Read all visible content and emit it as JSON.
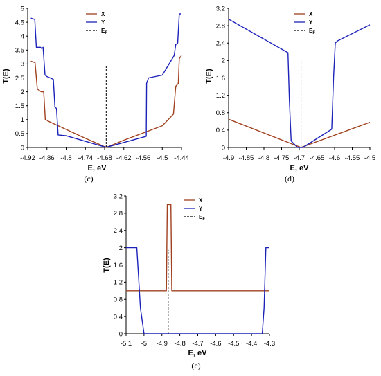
{
  "colors": {
    "X": "#a0401f",
    "Y": "#1c22b8",
    "Ef": "#000000",
    "axis": "#000000"
  },
  "chart_data": [
    {
      "panel": "(c)",
      "type": "line",
      "xlabel": "E, eV",
      "ylabel": "T(E)",
      "xlim": [
        -4.92,
        -4.44
      ],
      "ylim": [
        0,
        5
      ],
      "xticks": [
        "-4.92",
        "-4.86",
        "-4.8",
        "-4.74",
        "-4.68",
        "-4.62",
        "-4.56",
        "-4.5",
        "-4.44"
      ],
      "yticks": [
        "0",
        "0.5",
        "1",
        "1.5",
        "2",
        "2.5",
        "3",
        "3.5",
        "4",
        "4.5",
        "5"
      ],
      "legend": [
        "X",
        "Y",
        "EF"
      ],
      "series": [
        {
          "name": "X",
          "x": [
            -4.91,
            -4.897,
            -4.89,
            -4.878,
            -4.87,
            -4.865,
            -4.86,
            -4.857,
            -4.74,
            -4.7,
            -4.675,
            -4.62,
            -4.56,
            -4.5,
            -4.465,
            -4.458,
            -4.45,
            -4.447,
            -4.44
          ],
          "y": [
            3.1,
            3.05,
            2.1,
            2.0,
            2.0,
            1.0,
            0.98,
            0.95,
            0.33,
            0.13,
            0.0,
            0.26,
            0.52,
            0.78,
            1.2,
            2.2,
            2.3,
            3.2,
            3.3
          ]
        },
        {
          "name": "Y",
          "x": [
            -4.91,
            -4.898,
            -4.893,
            -4.88,
            -4.876,
            -4.872,
            -4.866,
            -4.86,
            -4.84,
            -4.835,
            -4.83,
            -4.825,
            -4.8,
            -4.68,
            -4.67,
            -4.55,
            -4.549,
            -4.543,
            -4.5,
            -4.463,
            -4.458,
            -4.452,
            -4.447,
            -4.44
          ],
          "y": [
            4.65,
            4.6,
            3.6,
            3.6,
            3.55,
            3.6,
            2.6,
            2.55,
            2.45,
            1.45,
            1.4,
            0.45,
            0.42,
            0.02,
            0.02,
            0.4,
            2.3,
            2.5,
            2.6,
            3.3,
            3.7,
            3.75,
            4.8,
            4.8
          ]
        }
      ],
      "ef_x": -4.675,
      "ef_ytop": 2.95
    },
    {
      "panel": "(d)",
      "type": "line",
      "xlabel": "E, eV",
      "ylabel": "T(E)",
      "xlim": [
        -4.9,
        -4.5
      ],
      "ylim": [
        0,
        3.2
      ],
      "xticks": [
        "-4.9",
        "-4.85",
        "-4.8",
        "-4.75",
        "-4.7",
        "-4.65",
        "-4.6",
        "-4.55",
        "-4.5"
      ],
      "yticks": [
        "0",
        "0.4",
        "0.8",
        "1.2",
        "1.6",
        "2",
        "2.4",
        "2.8",
        "3.2"
      ],
      "legend": [
        "X",
        "Y",
        "EF"
      ],
      "series": [
        {
          "name": "X",
          "x": [
            -4.9,
            -4.695,
            -4.5
          ],
          "y": [
            0.65,
            0.0,
            0.58
          ]
        },
        {
          "name": "Y",
          "x": [
            -4.9,
            -4.732,
            -4.728,
            -4.723,
            -4.705,
            -4.69,
            -4.682,
            -4.608,
            -4.603,
            -4.598,
            -4.592,
            -4.5
          ],
          "y": [
            2.95,
            2.18,
            1.1,
            0.15,
            0.0,
            0.0,
            0.04,
            0.42,
            1.6,
            2.4,
            2.45,
            2.82
          ]
        }
      ],
      "ef_x": -4.695,
      "ef_ytop": 2.0
    },
    {
      "panel": "(e)",
      "type": "line",
      "xlabel": "E, eV",
      "ylabel": "T(E)",
      "xlim": [
        -5.1,
        -4.3
      ],
      "ylim": [
        0,
        3.2
      ],
      "xticks": [
        "-5.1",
        "-5",
        "-4.9",
        "-4.8",
        "-4.7",
        "-4.6",
        "-4.5",
        "-4.4",
        "-4.3"
      ],
      "yticks": [
        "0",
        "0.4",
        "0.8",
        "1.2",
        "1.6",
        "2",
        "2.4",
        "2.8",
        "3.2"
      ],
      "legend": [
        "X",
        "Y",
        "EF"
      ],
      "series": [
        {
          "name": "X",
          "x": [
            -5.1,
            -4.875,
            -4.87,
            -4.85,
            -4.845,
            -4.3
          ],
          "y": [
            1.0,
            1.0,
            3.0,
            3.0,
            1.0,
            1.0
          ]
        },
        {
          "name": "Y",
          "x": [
            -5.1,
            -5.04,
            -5.02,
            -5.0,
            -4.34,
            -4.33,
            -4.32,
            -4.3
          ],
          "y": [
            2.0,
            2.0,
            0.6,
            0.0,
            0.0,
            0.6,
            2.0,
            2.0
          ]
        }
      ],
      "ef_x": -4.865,
      "ef_ytop": 1.95
    }
  ]
}
